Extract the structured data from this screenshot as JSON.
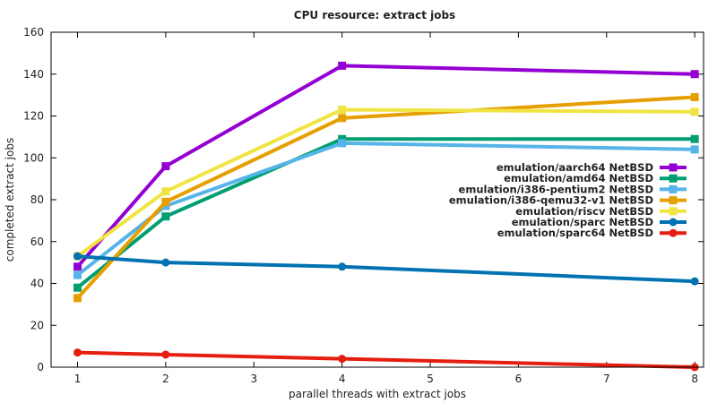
{
  "chart_data": {
    "type": "line",
    "title": "CPU resource: extract jobs",
    "xlabel": "parallel threads with extract jobs",
    "ylabel": "completed extract jobs",
    "xlim": [
      0.7,
      8.1
    ],
    "ylim": [
      0,
      160
    ],
    "x_ticks": [
      1,
      2,
      3,
      4,
      5,
      6,
      7,
      8
    ],
    "y_ticks": [
      0,
      20,
      40,
      60,
      80,
      100,
      120,
      140,
      160
    ],
    "legend_position": "center-right",
    "x": [
      1,
      2,
      4,
      8
    ],
    "series": [
      {
        "name": "emulation/aarch64 NetBSD",
        "color": "#9400d3",
        "marker": "square",
        "values": [
          48,
          96,
          144,
          140
        ]
      },
      {
        "name": "emulation/amd64 NetBSD",
        "color": "#009e73",
        "marker": "square",
        "values": [
          38,
          72,
          109,
          109
        ]
      },
      {
        "name": "emulation/i386-pentium2 NetBSD",
        "color": "#56b4e9",
        "marker": "square",
        "values": [
          44,
          77,
          107,
          104
        ]
      },
      {
        "name": "emulation/i386-qemu32-v1 NetBSD",
        "color": "#e69f00",
        "marker": "square",
        "values": [
          33,
          79,
          119,
          129
        ]
      },
      {
        "name": "emulation/riscv NetBSD",
        "color": "#f0e442",
        "marker": "square",
        "values": [
          53,
          84,
          123,
          122
        ]
      },
      {
        "name": "emulation/sparc NetBSD",
        "color": "#0072b2",
        "marker": "circle",
        "values": [
          53,
          50,
          48,
          41
        ]
      },
      {
        "name": "emulation/sparc64 NetBSD",
        "color": "#e51e10",
        "marker": "circle",
        "values": [
          7,
          6,
          4,
          0
        ]
      }
    ]
  }
}
